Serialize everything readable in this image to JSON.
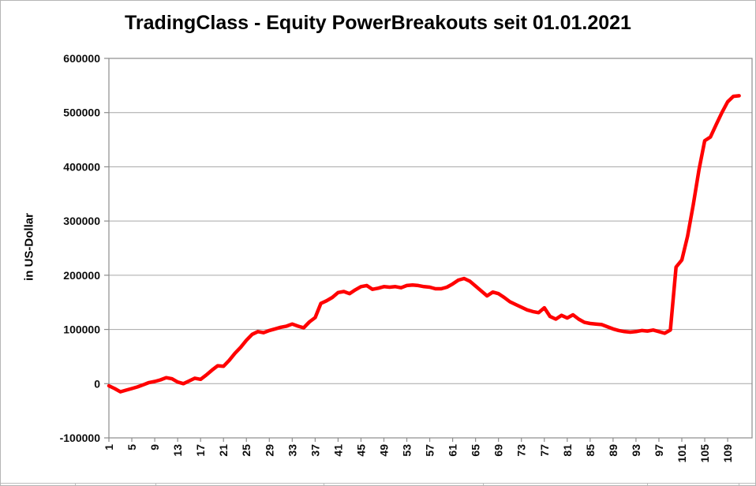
{
  "chart_data": {
    "type": "line",
    "title": "TradingClass - Equity PowerBreakouts seit 01.01.2021",
    "ylabel": "in US-Dollar",
    "xlabel": "",
    "ylim": [
      -100000,
      600000
    ],
    "y_ticks": [
      -100000,
      0,
      100000,
      200000,
      300000,
      400000,
      500000,
      600000
    ],
    "y_tick_labels": [
      "-100000",
      "0",
      "100000",
      "200000",
      "300000",
      "400000",
      "500000",
      "600000"
    ],
    "x_start": 1,
    "x_tick_labels": [
      1,
      5,
      9,
      13,
      17,
      21,
      25,
      29,
      33,
      37,
      41,
      45,
      49,
      53,
      57,
      61,
      65,
      69,
      73,
      77,
      81,
      85,
      89,
      93,
      97,
      101,
      105,
      109
    ],
    "grid": true,
    "legend": false,
    "colors": {
      "line": "#ff0000",
      "gridline": "#a6a6a6",
      "axis": "#8c8c8c"
    },
    "values": [
      -4000,
      -9000,
      -15000,
      -12000,
      -9000,
      -6000,
      -2000,
      2000,
      4000,
      7000,
      11000,
      9000,
      3000,
      0,
      5000,
      10000,
      8000,
      16000,
      25000,
      33000,
      32000,
      43000,
      56000,
      67000,
      80000,
      91000,
      96000,
      94000,
      98000,
      101000,
      104000,
      106000,
      110000,
      106000,
      103000,
      114000,
      122000,
      148000,
      153000,
      159000,
      168000,
      170000,
      166000,
      173000,
      179000,
      181000,
      174000,
      176000,
      179000,
      178000,
      179000,
      177000,
      181000,
      182000,
      181000,
      179000,
      178000,
      175000,
      175000,
      178000,
      184000,
      191000,
      194000,
      189000,
      180000,
      171000,
      162000,
      169000,
      166000,
      159000,
      151000,
      146000,
      141000,
      136000,
      133000,
      131000,
      140000,
      124000,
      119000,
      126000,
      121000,
      127000,
      119000,
      113000,
      111000,
      110000,
      109000,
      105000,
      101000,
      98000,
      96000,
      95000,
      96000,
      98000,
      97000,
      99000,
      96000,
      93000,
      99000,
      215000,
      228000,
      272000,
      330000,
      395000,
      448000,
      455000,
      478000,
      500000,
      520000,
      530000,
      531000
    ]
  }
}
